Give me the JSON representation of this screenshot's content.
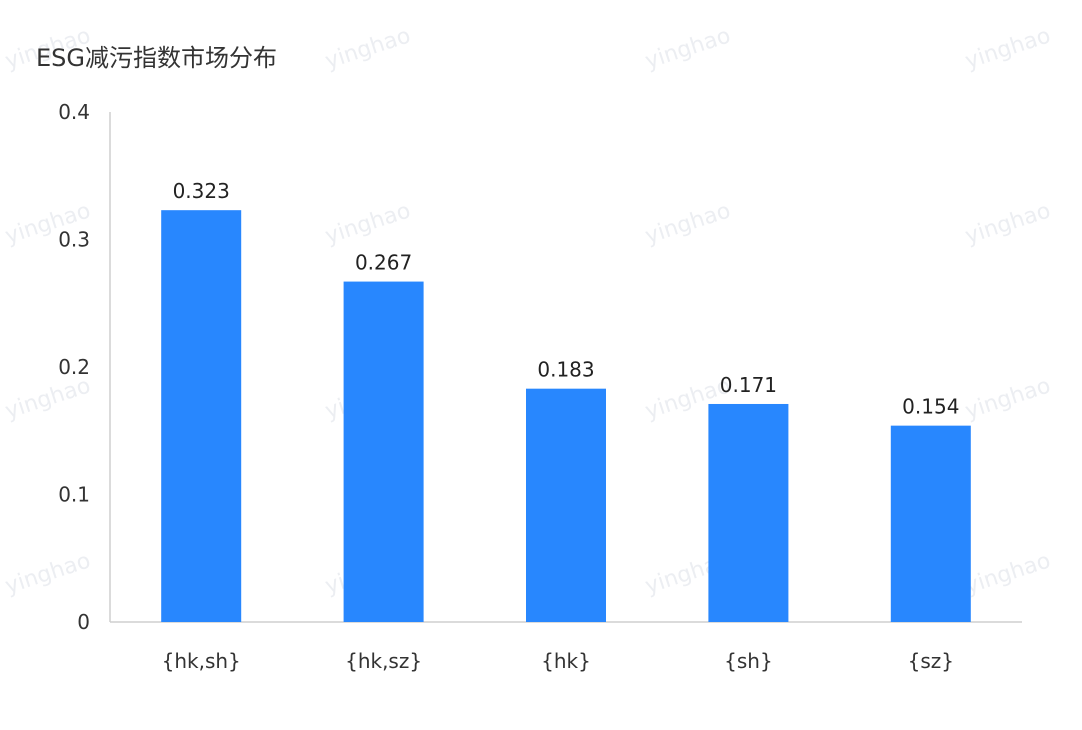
{
  "watermark": "yinghao",
  "chart_data": {
    "type": "bar",
    "title": "ESG减污指数市场分布",
    "xlabel": "",
    "ylabel": "",
    "categories": [
      "{hk,sh}",
      "{hk,sz}",
      "{hk}",
      "{sh}",
      "{sz}"
    ],
    "values": [
      0.323,
      0.267,
      0.183,
      0.171,
      0.154
    ],
    "value_labels": [
      "0.323",
      "0.267",
      "0.183",
      "0.171",
      "0.154"
    ],
    "yticks": [
      "0",
      "0.1",
      "0.2",
      "0.3",
      "0.4"
    ],
    "ylim": [
      0,
      0.4
    ],
    "grid": false,
    "legend": "none",
    "bar_color": "#2887fe",
    "axis_color": "#cfcfcf"
  }
}
